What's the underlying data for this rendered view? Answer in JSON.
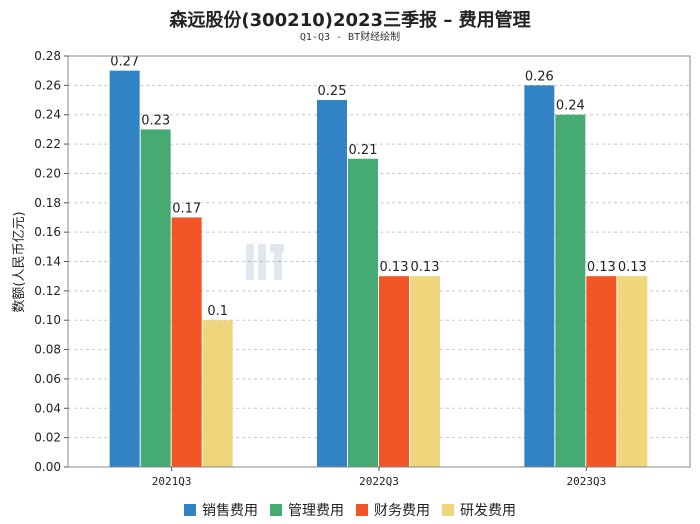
{
  "chart_data": {
    "type": "bar",
    "title": "森远股份(300210)2023三季报 – 费用管理",
    "subtitle": "Q1-Q3 - BT财经绘制",
    "ylabel": "数额(人民币亿元)",
    "xlabel": "",
    "ylim": [
      0,
      0.28
    ],
    "ytick_step": 0.02,
    "grid": true,
    "legend_position": "bottom",
    "categories": [
      "2021Q3",
      "2022Q3",
      "2023Q3"
    ],
    "series": [
      {
        "name": "销售费用",
        "color": "#3283C3",
        "values": [
          0.27,
          0.25,
          0.26
        ],
        "labels": [
          "0.27",
          "0.25",
          "0.26"
        ]
      },
      {
        "name": "管理费用",
        "color": "#45AB72",
        "values": [
          0.23,
          0.21,
          0.24
        ],
        "labels": [
          "0.23",
          "0.21",
          "0.24"
        ]
      },
      {
        "name": "财务费用",
        "color": "#F15525",
        "values": [
          0.17,
          0.13,
          0.13
        ],
        "labels": [
          "0.17",
          "0.13",
          "0.13"
        ]
      },
      {
        "name": "研发费用",
        "color": "#EFD67D",
        "values": [
          0.1,
          0.13,
          0.13
        ],
        "labels": [
          "0.1",
          "0.13",
          "0.13"
        ]
      }
    ]
  }
}
